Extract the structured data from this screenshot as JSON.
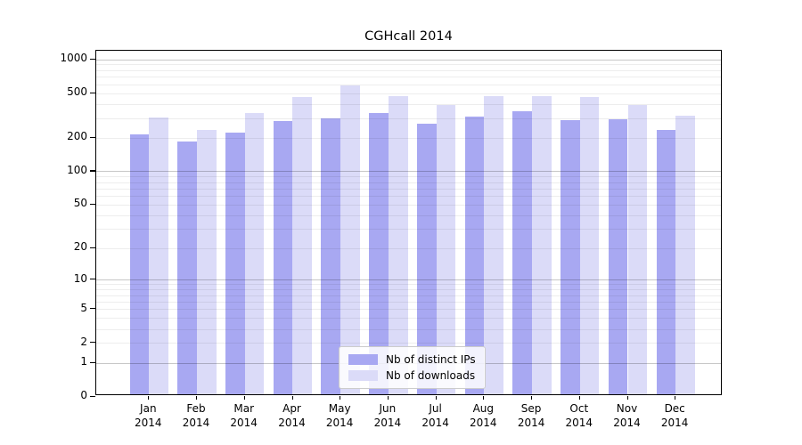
{
  "chart_data": {
    "type": "bar",
    "title": "CGHcall 2014",
    "categories": [
      "Jan",
      "Feb",
      "Mar",
      "Apr",
      "May",
      "Jun",
      "Jul",
      "Aug",
      "Sep",
      "Oct",
      "Nov",
      "Dec"
    ],
    "x_year": "2014",
    "series": [
      {
        "name": "Nb of distinct IPs",
        "color": "#a8a8f2",
        "values": [
          203,
          176,
          214,
          271,
          284,
          318,
          254,
          296,
          328,
          275,
          278,
          226
        ]
      },
      {
        "name": "Nb of downloads",
        "color": "#dbdbf8",
        "values": [
          288,
          224,
          318,
          440,
          560,
          453,
          374,
          448,
          446,
          442,
          377,
          298
        ]
      }
    ],
    "y_ticks": [
      0,
      1,
      2,
      5,
      10,
      20,
      50,
      100,
      200,
      500,
      1000
    ],
    "y_scale": "log1p",
    "ylim": [
      0,
      1000
    ],
    "grid": "horizontal",
    "legend_position": "lower-center"
  }
}
